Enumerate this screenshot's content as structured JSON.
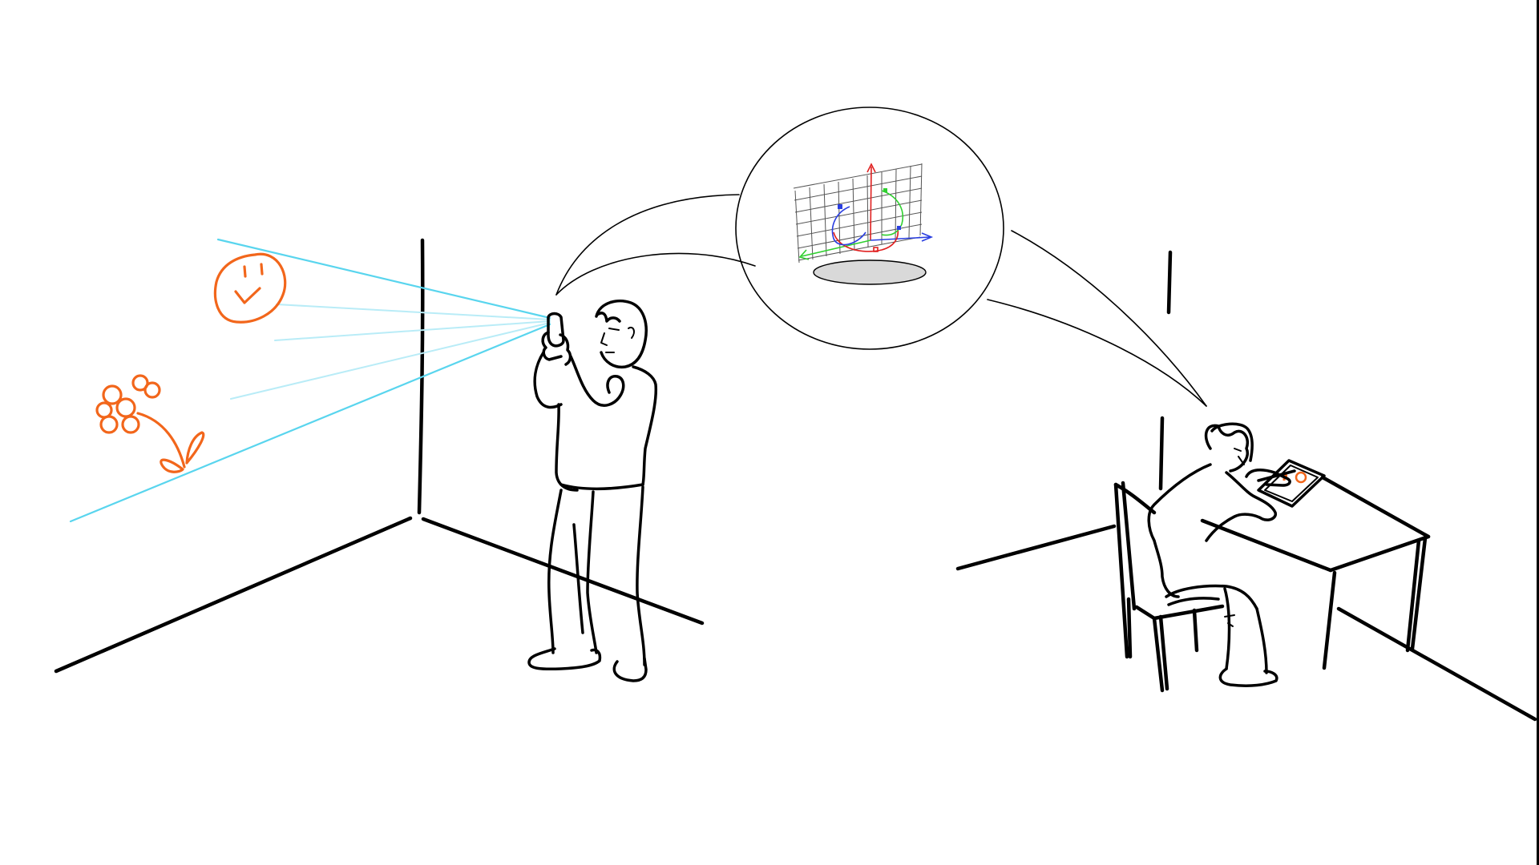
{
  "colors": {
    "background": "#ffffff",
    "ink": "#000000",
    "projection_rays": "#59d5ee",
    "projection_rays_faint": "#b9ecf7",
    "drawings": "#f2661b",
    "grid": "#555555",
    "axis_x": "#2a3ee0",
    "axis_y": "#e02020",
    "axis_z": "#2fcf2f",
    "shadow": "#d9d9d9"
  },
  "icons": {
    "smiley": "smiley-face-drawing",
    "flower": "flower-drawing",
    "phone": "smartphone-icon",
    "tablet": "tablet-icon"
  }
}
